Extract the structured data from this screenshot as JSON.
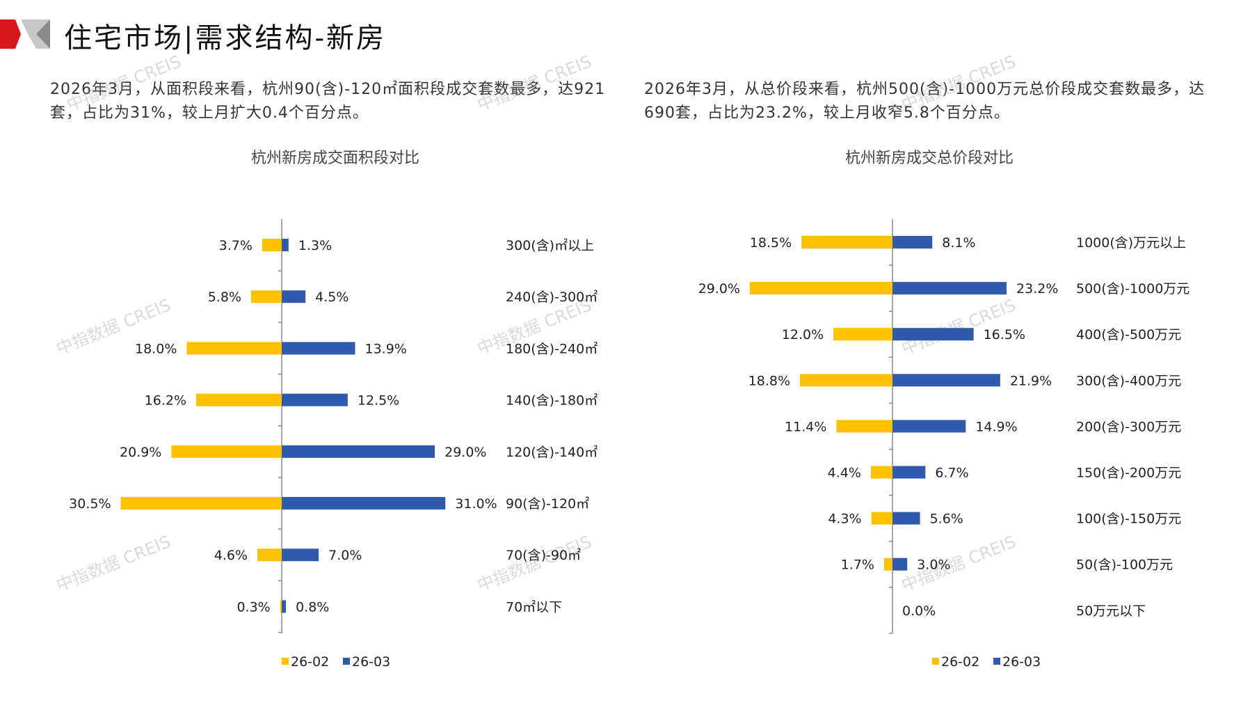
{
  "header": {
    "title": "住宅市场|需求结构-新房"
  },
  "descriptions": {
    "left": "2026年3月，从面积段来看，杭州90(含)-120㎡面积段成交套数最多，达921套，占比为31%，较上月扩大0.4个百分点。",
    "right": "2026年3月，从总价段来看，杭州500(含)-1000万元总价段成交套数最多，达690套，占比为23.2%，较上月收窄5.8个百分点。"
  },
  "watermark": "中指数据 CREIS",
  "colors": {
    "s1": "#FFC000",
    "s2": "#2F5AAE",
    "axis": "#888888"
  },
  "chart_data": [
    {
      "type": "bar",
      "orientation": "butterfly-horizontal",
      "title": "杭州新房成交面积段对比",
      "categories": [
        "300(含)㎡以上",
        "240(含)-300㎡",
        "180(含)-240㎡",
        "140(含)-180㎡",
        "120(含)-140㎡",
        "90(含)-120㎡",
        "70(含)-90㎡",
        "70㎡以下"
      ],
      "series": [
        {
          "name": "26-02",
          "values": [
            3.7,
            5.8,
            18.0,
            16.2,
            20.9,
            30.5,
            4.6,
            0.3
          ],
          "labels": [
            "3.7%",
            "5.8%",
            "18.0%",
            "16.2%",
            "20.9%",
            "30.5%",
            "4.6%",
            "0.3%"
          ]
        },
        {
          "name": "26-03",
          "values": [
            1.3,
            4.5,
            13.9,
            12.5,
            29.0,
            31.0,
            7.0,
            0.8
          ],
          "labels": [
            "1.3%",
            "4.5%",
            "13.9%",
            "12.5%",
            "29.0%",
            "31.0%",
            "7.0%",
            "0.8%"
          ]
        }
      ],
      "legend": "bottom"
    },
    {
      "type": "bar",
      "orientation": "butterfly-horizontal",
      "title": "杭州新房成交总价段对比",
      "categories": [
        "1000(含)万元以上",
        "500(含)-1000万元",
        "400(含)-500万元",
        "300(含)-400万元",
        "200(含)-300万元",
        "150(含)-200万元",
        "100(含)-150万元",
        "50(含)-100万元",
        "50万元以下"
      ],
      "series": [
        {
          "name": "26-02",
          "values": [
            18.5,
            29.0,
            12.0,
            18.8,
            11.4,
            4.4,
            4.3,
            1.7,
            0.0
          ],
          "labels": [
            "18.5%",
            "29.0%",
            "12.0%",
            "18.8%",
            "11.4%",
            "4.4%",
            "4.3%",
            "1.7%",
            ""
          ]
        },
        {
          "name": "26-03",
          "values": [
            8.1,
            23.2,
            16.5,
            21.9,
            14.9,
            6.7,
            5.6,
            3.0,
            0.0
          ],
          "labels": [
            "8.1%",
            "23.2%",
            "16.5%",
            "21.9%",
            "14.9%",
            "6.7%",
            "5.6%",
            "3.0%",
            "0.0%"
          ]
        }
      ],
      "legend": "bottom"
    }
  ]
}
